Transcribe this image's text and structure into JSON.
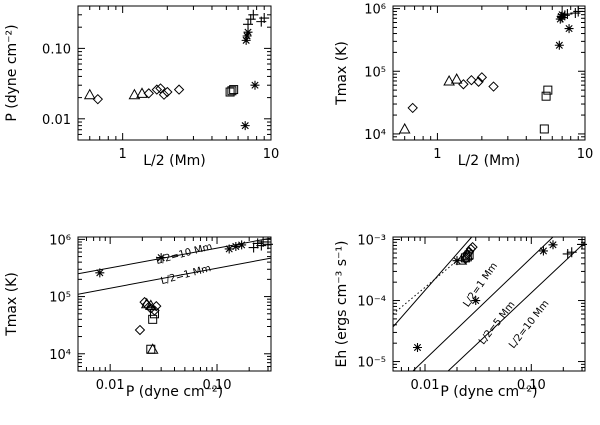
{
  "chart_data": [
    {
      "id": "p1",
      "type": "scatter",
      "xscale": "log",
      "yscale": "log",
      "xlim": [
        0.5,
        10
      ],
      "ylim": [
        0.005,
        0.4
      ],
      "xlabel": "L/2 (Mm)",
      "ylabel": "P (dyne cm⁻²)",
      "xticks": [
        {
          "v": 1,
          "label": "1"
        },
        {
          "v": 10,
          "label": "10"
        }
      ],
      "yticks": [
        {
          "v": 0.01,
          "label": "0.01"
        },
        {
          "v": 0.1,
          "label": "0.10"
        }
      ],
      "series": [
        {
          "marker": "triangle",
          "points": [
            [
              0.6,
              0.022
            ],
            [
              1.2,
              0.022
            ],
            [
              1.35,
              0.023
            ]
          ]
        },
        {
          "marker": "diamond",
          "points": [
            [
              0.68,
              0.019
            ],
            [
              1.5,
              0.023
            ],
            [
              1.7,
              0.026
            ],
            [
              1.9,
              0.022
            ],
            [
              2.0,
              0.024
            ],
            [
              2.4,
              0.026
            ],
            [
              1.8,
              0.027
            ]
          ]
        },
        {
          "marker": "square",
          "points": [
            [
              5.3,
              0.024
            ],
            [
              5.45,
              0.025
            ],
            [
              5.6,
              0.026
            ]
          ]
        },
        {
          "marker": "asterisk",
          "points": [
            [
              6.7,
              0.008
            ],
            [
              6.8,
              0.13
            ],
            [
              6.9,
              0.15
            ],
            [
              7.0,
              0.17
            ],
            [
              7.8,
              0.03
            ]
          ]
        },
        {
          "marker": "plus",
          "points": [
            [
              7.0,
              0.22
            ],
            [
              7.3,
              0.26
            ],
            [
              7.6,
              0.3
            ],
            [
              8.6,
              0.24
            ],
            [
              9.0,
              0.27
            ]
          ]
        }
      ],
      "lines": []
    },
    {
      "id": "p2",
      "type": "scatter",
      "xscale": "log",
      "yscale": "log",
      "xlim": [
        0.5,
        10
      ],
      "ylim": [
        8000,
        1100000
      ],
      "xlabel": "L/2 (Mm)",
      "ylabel": "Tmax (K)",
      "xticks": [
        {
          "v": 1,
          "label": "1"
        },
        {
          "v": 10,
          "label": "10"
        }
      ],
      "yticks": [
        {
          "v": 10000,
          "label": "10⁴"
        },
        {
          "v": 100000,
          "label": "10⁵"
        },
        {
          "v": 1000000,
          "label": "10⁶"
        }
      ],
      "series": [
        {
          "marker": "triangle",
          "points": [
            [
              0.6,
              12000
            ],
            [
              1.2,
              70000
            ],
            [
              1.35,
              75000
            ]
          ]
        },
        {
          "marker": "diamond",
          "points": [
            [
              0.68,
              26000
            ],
            [
              1.5,
              62000
            ],
            [
              1.7,
              72000
            ],
            [
              1.9,
              68000
            ],
            [
              2.0,
              80000
            ],
            [
              2.4,
              57000
            ]
          ]
        },
        {
          "marker": "square",
          "points": [
            [
              5.3,
              12000
            ],
            [
              5.45,
              40000
            ],
            [
              5.6,
              50000
            ]
          ]
        },
        {
          "marker": "asterisk",
          "points": [
            [
              6.7,
              260000
            ],
            [
              6.8,
              680000
            ],
            [
              6.9,
              750000
            ],
            [
              7.0,
              800000
            ],
            [
              7.8,
              480000
            ]
          ]
        },
        {
          "marker": "plus",
          "points": [
            [
              7.0,
              720000
            ],
            [
              7.3,
              780000
            ],
            [
              7.6,
              820000
            ],
            [
              8.6,
              850000
            ],
            [
              9.0,
              900000
            ]
          ]
        }
      ],
      "lines": []
    },
    {
      "id": "p3",
      "type": "scatter",
      "xscale": "log",
      "yscale": "log",
      "xlim": [
        0.005,
        0.32
      ],
      "ylim": [
        5000,
        1100000
      ],
      "xlabel": "P (dyne cm⁻²)",
      "ylabel": "Tmax (K)",
      "xticks": [
        {
          "v": 0.01,
          "label": "0.01"
        },
        {
          "v": 0.1,
          "label": "0.10"
        }
      ],
      "yticks": [
        {
          "v": 10000,
          "label": "10⁴"
        },
        {
          "v": 100000,
          "label": "10⁵"
        },
        {
          "v": 1000000,
          "label": "10⁶"
        }
      ],
      "series": [
        {
          "marker": "triangle",
          "points": [
            [
              0.022,
              75000
            ],
            [
              0.024,
              70000
            ],
            [
              0.025,
              12000
            ]
          ]
        },
        {
          "marker": "diamond",
          "points": [
            [
              0.019,
              26000
            ],
            [
              0.021,
              80000
            ],
            [
              0.022,
              72000
            ],
            [
              0.024,
              62000
            ],
            [
              0.026,
              57000
            ],
            [
              0.027,
              68000
            ]
          ]
        },
        {
          "marker": "square",
          "points": [
            [
              0.024,
              12000
            ],
            [
              0.025,
              40000
            ],
            [
              0.026,
              50000
            ]
          ]
        },
        {
          "marker": "asterisk",
          "points": [
            [
              0.008,
              260000
            ],
            [
              0.03,
              480000
            ],
            [
              0.13,
              680000
            ],
            [
              0.15,
              750000
            ],
            [
              0.17,
              800000
            ]
          ]
        },
        {
          "marker": "plus",
          "points": [
            [
              0.22,
              720000
            ],
            [
              0.24,
              850000
            ],
            [
              0.26,
              780000
            ],
            [
              0.27,
              900000
            ],
            [
              0.3,
              820000
            ]
          ]
        }
      ],
      "lines": [
        {
          "style": "solid",
          "from": [
            0.005,
            250000
          ],
          "to": [
            0.32,
            1050000
          ]
        },
        {
          "style": "solid",
          "from": [
            0.005,
            110000
          ],
          "to": [
            0.32,
            470000
          ]
        }
      ],
      "annotations": [
        {
          "text": "L/2=10 Mm",
          "at": [
            0.05,
            500000
          ],
          "angle": -15
        },
        {
          "text": "L/2=1 Mm",
          "at": [
            0.052,
            215000
          ],
          "angle": -15
        }
      ]
    },
    {
      "id": "p4",
      "type": "scatter",
      "xscale": "log",
      "yscale": "log",
      "xlim": [
        0.005,
        0.32
      ],
      "ylim": [
        7e-06,
        0.0011
      ],
      "xlabel": "P (dyne cm⁻²)",
      "ylabel": "Eh (ergs cm⁻³ s⁻¹)",
      "xticks": [
        {
          "v": 0.01,
          "label": "0.01"
        },
        {
          "v": 0.1,
          "label": "0.10"
        }
      ],
      "yticks": [
        {
          "v": 1e-05,
          "label": "10⁻⁵"
        },
        {
          "v": 0.0001,
          "label": "10⁻⁴"
        },
        {
          "v": 0.001,
          "label": "10⁻³"
        }
      ],
      "series": [
        {
          "marker": "triangle",
          "points": [
            [
              0.022,
              0.00046
            ],
            [
              0.025,
              0.00055
            ]
          ]
        },
        {
          "marker": "diamond",
          "points": [
            [
              0.024,
              0.00048
            ],
            [
              0.025,
              0.00058
            ],
            [
              0.026,
              0.00063
            ],
            [
              0.027,
              0.0007
            ],
            [
              0.028,
              0.00075
            ]
          ]
        },
        {
          "marker": "square",
          "points": [
            [
              0.024,
              0.0005
            ],
            [
              0.025,
              0.00052
            ],
            [
              0.026,
              0.00056
            ]
          ]
        },
        {
          "marker": "asterisk",
          "points": [
            [
              0.0085,
              1.7e-05
            ],
            [
              0.03,
              0.0001
            ],
            [
              0.13,
              0.00065
            ],
            [
              0.16,
              0.00082
            ],
            [
              0.02,
              0.00045
            ]
          ]
        },
        {
          "marker": "plus",
          "points": [
            [
              0.22,
              0.00058
            ],
            [
              0.24,
              0.00062
            ],
            [
              0.3,
              0.00083
            ]
          ]
        }
      ],
      "lines": [
        {
          "style": "solid",
          "from": [
            0.005,
            3.7e-05
          ],
          "to": [
            0.0275,
            0.0011
          ]
        },
        {
          "style": "solid",
          "from": [
            0.0077,
            7e-06
          ],
          "to": [
            0.16,
            0.0011
          ]
        },
        {
          "style": "solid",
          "from": [
            0.0165,
            7e-06
          ],
          "to": [
            0.32,
            0.0009
          ]
        },
        {
          "style": "dotted",
          "from": [
            0.005,
            6e-05
          ],
          "to": [
            0.02,
            0.00045
          ]
        }
      ],
      "annotations": [
        {
          "text": "L/2=1 Mm",
          "at": [
            0.035,
            0.00017
          ],
          "angle": -55
        },
        {
          "text": "L/2=5 Mm",
          "at": [
            0.05,
            4e-05
          ],
          "angle": -52
        },
        {
          "text": "L/2=10 Mm",
          "at": [
            0.1,
            3.8e-05
          ],
          "angle": -52
        }
      ]
    }
  ]
}
